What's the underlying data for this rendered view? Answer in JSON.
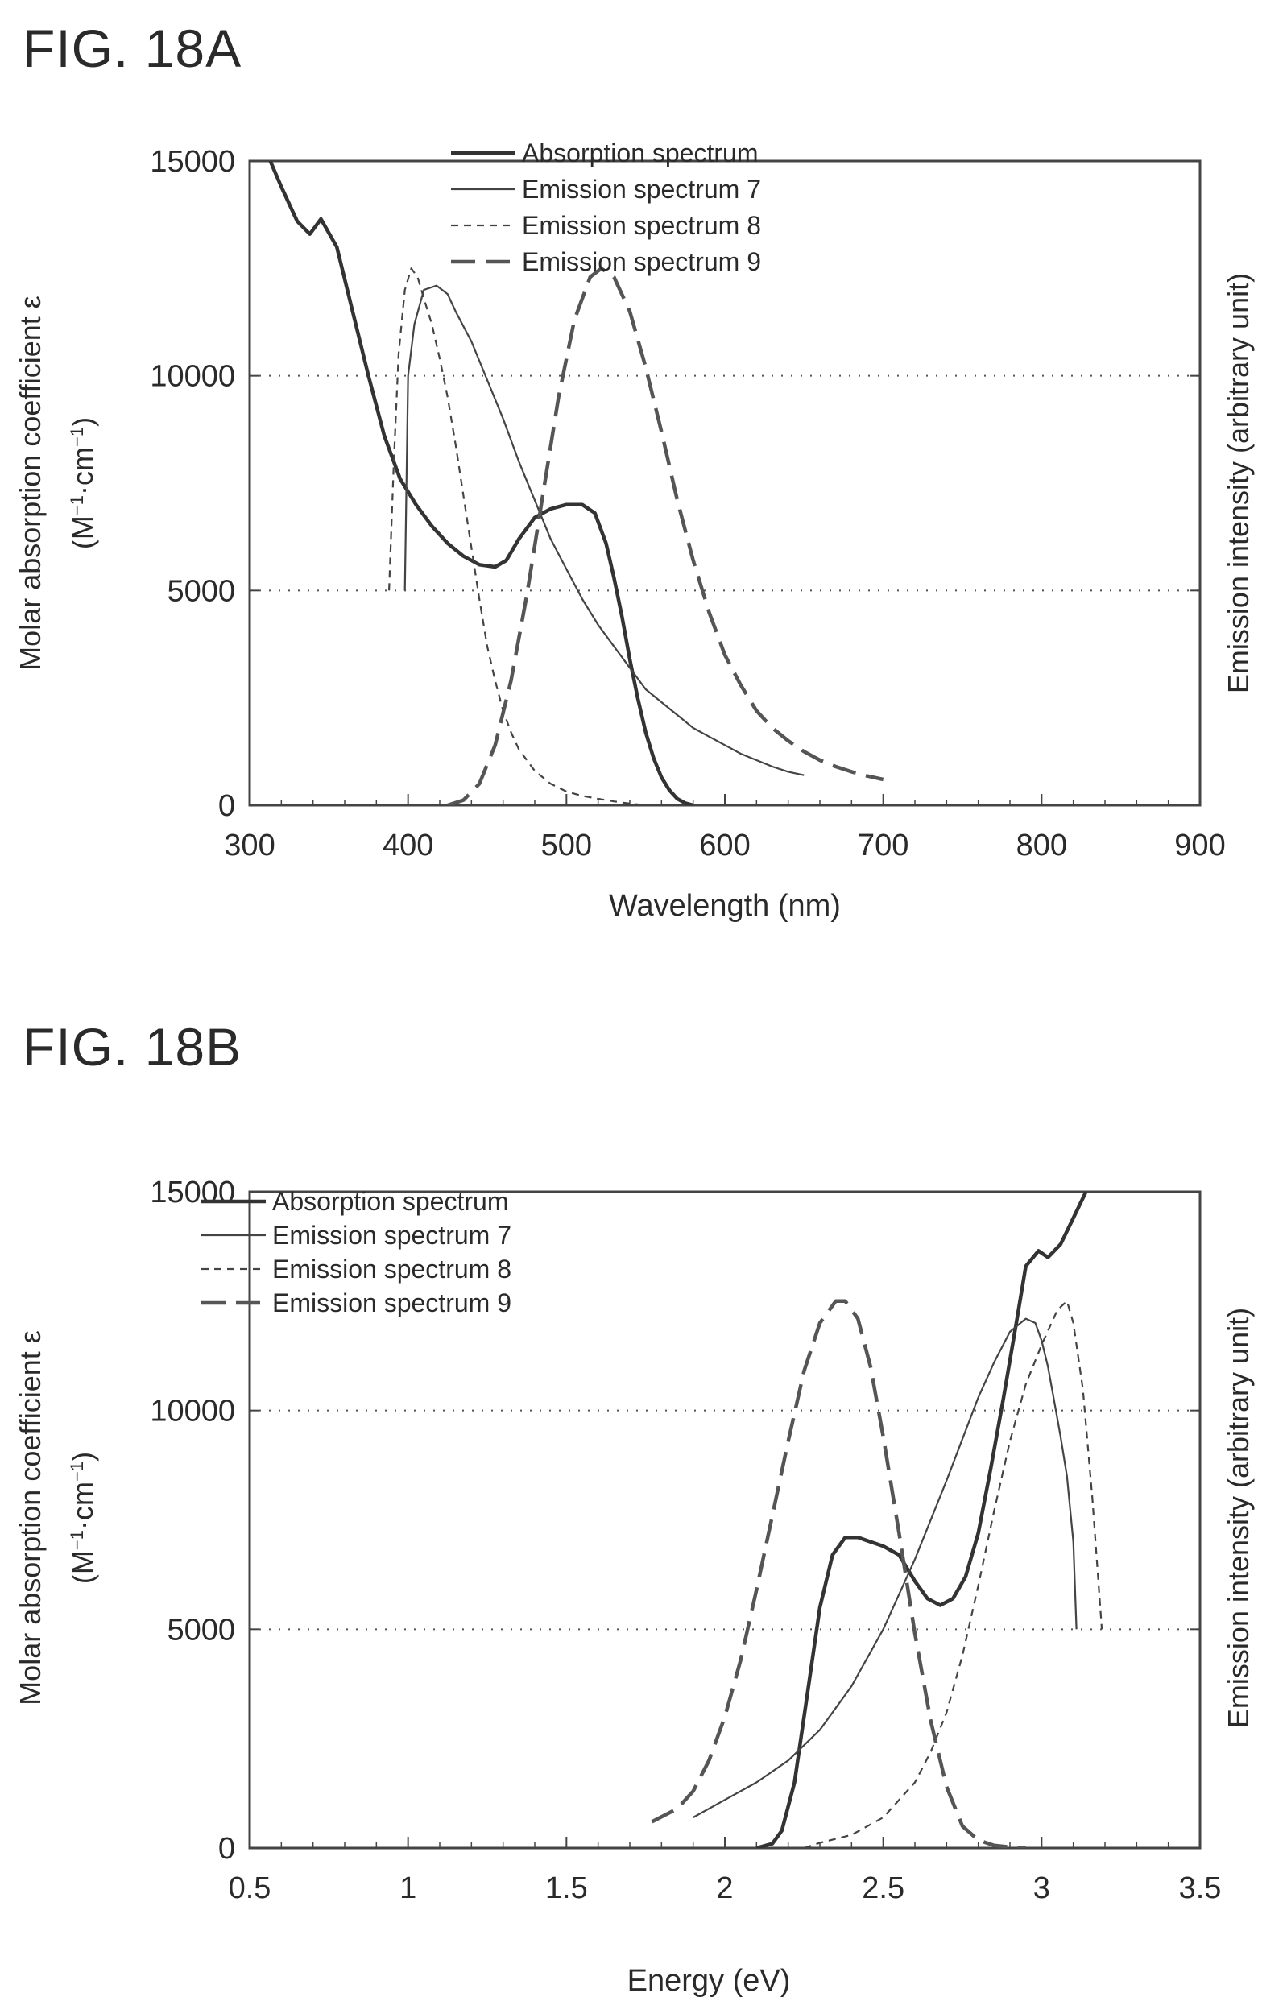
{
  "figures": {
    "a": {
      "title": "FIG. 18A"
    },
    "b": {
      "title": "FIG. 18B"
    }
  },
  "chart_data": [
    {
      "type": "line",
      "title": "FIG. 18A",
      "xlabel": "Wavelength (nm)",
      "ylabel": "Molar absorption coefficient ε",
      "ylabel_unit_base": "(M",
      "ylabel_unit_exp1": "−1",
      "ylabel_unit_mid": "·cm",
      "ylabel_unit_exp2": "−1",
      "ylabel_unit_end": ")",
      "y2label": "Emission intensity (arbitrary unit)",
      "xlim": [
        300,
        900
      ],
      "ylim": [
        0,
        15000
      ],
      "x_ticks": [
        300,
        400,
        500,
        600,
        700,
        800,
        900
      ],
      "y_ticks": [
        0,
        5000,
        10000,
        15000
      ],
      "x_tick_labels": [
        "300",
        "400",
        "500",
        "600",
        "700",
        "800",
        "900"
      ],
      "y_tick_labels": [
        "0",
        "5000",
        "10000",
        "15000"
      ],
      "grid": "dotted horizontal at 5000 and 10000",
      "legend_position": "top-right",
      "series": [
        {
          "name": "Absorption spectrum",
          "style": "thick-solid",
          "color": "#333333",
          "x": [
            313,
            320,
            330,
            338,
            345,
            355,
            365,
            375,
            385,
            395,
            405,
            415,
            425,
            435,
            445,
            455,
            462,
            470,
            480,
            490,
            500,
            510,
            518,
            525,
            530,
            535,
            540,
            545,
            550,
            555,
            560,
            565,
            570,
            575,
            580
          ],
          "y": [
            15000,
            14400,
            13600,
            13300,
            13650,
            13000,
            11500,
            10000,
            8600,
            7600,
            7000,
            6500,
            6100,
            5800,
            5600,
            5550,
            5700,
            6200,
            6700,
            6900,
            7000,
            7000,
            6800,
            6100,
            5300,
            4400,
            3400,
            2500,
            1700,
            1100,
            650,
            350,
            150,
            50,
            0
          ]
        },
        {
          "name": "Emission spectrum 7",
          "style": "thin-solid",
          "color": "#444444",
          "x": [
            398,
            400,
            404,
            410,
            418,
            425,
            430,
            440,
            450,
            460,
            470,
            480,
            490,
            500,
            510,
            520,
            530,
            540,
            550,
            560,
            570,
            580,
            590,
            600,
            610,
            620,
            630,
            640,
            650
          ],
          "y": [
            5000,
            10000,
            11200,
            12000,
            12100,
            11900,
            11500,
            10800,
            9900,
            9000,
            8000,
            7100,
            6200,
            5500,
            4800,
            4200,
            3700,
            3200,
            2700,
            2400,
            2100,
            1800,
            1600,
            1400,
            1200,
            1050,
            900,
            780,
            700
          ]
        },
        {
          "name": "Emission spectrum 8",
          "style": "short-dash",
          "color": "#444444",
          "x": [
            388,
            391,
            394,
            398,
            402,
            406,
            410,
            415,
            420,
            425,
            430,
            435,
            440,
            445,
            450,
            455,
            460,
            465,
            470,
            480,
            490,
            500,
            510,
            520,
            530,
            540,
            550
          ],
          "y": [
            5000,
            8000,
            10500,
            12000,
            12500,
            12300,
            11800,
            11200,
            10400,
            9500,
            8400,
            7200,
            6000,
            4800,
            3700,
            2900,
            2200,
            1700,
            1300,
            800,
            500,
            320,
            220,
            150,
            90,
            40,
            0
          ]
        },
        {
          "name": "Emission spectrum 9",
          "style": "long-dash",
          "color": "#555555",
          "x": [
            425,
            435,
            445,
            455,
            465,
            475,
            485,
            495,
            505,
            515,
            522,
            530,
            540,
            550,
            560,
            570,
            580,
            590,
            600,
            610,
            620,
            630,
            640,
            650,
            660,
            670,
            680,
            690,
            700
          ],
          "y": [
            0,
            120,
            500,
            1400,
            2900,
            4900,
            7200,
            9500,
            11300,
            12300,
            12500,
            12300,
            11500,
            10200,
            8700,
            7100,
            5700,
            4500,
            3500,
            2800,
            2200,
            1800,
            1500,
            1250,
            1050,
            900,
            780,
            680,
            600
          ]
        }
      ]
    },
    {
      "type": "line",
      "title": "FIG. 18B",
      "xlabel": "Energy (eV)",
      "ylabel": "Molar absorption coefficient ε",
      "ylabel_unit_base": "(M",
      "ylabel_unit_exp1": "−1",
      "ylabel_unit_mid": "·cm",
      "ylabel_unit_exp2": "−1",
      "ylabel_unit_end": ")",
      "y2label": "Emission intensity (arbitrary unit)",
      "xlim": [
        0.5,
        3.5
      ],
      "ylim": [
        0,
        15000
      ],
      "x_ticks": [
        0.5,
        1,
        1.5,
        2,
        2.5,
        3,
        3.5
      ],
      "y_ticks": [
        0,
        5000,
        10000,
        15000
      ],
      "x_tick_labels": [
        "0.5",
        "1",
        "1.5",
        "2",
        "2.5",
        "3",
        "3.5"
      ],
      "y_tick_labels": [
        "0",
        "5000",
        "10000",
        "15000"
      ],
      "grid": "dotted horizontal at 5000 and 10000",
      "legend_position": "top-left",
      "series": [
        {
          "name": "Absorption spectrum",
          "style": "thick-solid",
          "color": "#333333",
          "x": [
            2.1,
            2.15,
            2.18,
            2.22,
            2.26,
            2.3,
            2.34,
            2.38,
            2.42,
            2.46,
            2.5,
            2.55,
            2.6,
            2.64,
            2.68,
            2.72,
            2.76,
            2.8,
            2.84,
            2.88,
            2.92,
            2.95,
            2.99,
            3.02,
            3.06,
            3.1,
            3.14
          ],
          "y": [
            0,
            100,
            400,
            1500,
            3500,
            5500,
            6700,
            7100,
            7100,
            7000,
            6900,
            6700,
            6100,
            5700,
            5550,
            5700,
            6200,
            7200,
            8700,
            10300,
            12000,
            13300,
            13650,
            13500,
            13800,
            14400,
            15000
          ]
        },
        {
          "name": "Emission spectrum 7",
          "style": "thin-solid",
          "color": "#444444",
          "x": [
            1.9,
            2.0,
            2.1,
            2.2,
            2.3,
            2.4,
            2.5,
            2.6,
            2.7,
            2.8,
            2.85,
            2.9,
            2.95,
            2.98,
            3.0,
            3.02,
            3.04,
            3.06,
            3.08,
            3.1,
            3.11
          ],
          "y": [
            700,
            1100,
            1500,
            2000,
            2700,
            3700,
            5000,
            6600,
            8400,
            10300,
            11100,
            11800,
            12100,
            12000,
            11600,
            11000,
            10200,
            9400,
            8500,
            7000,
            5000
          ]
        },
        {
          "name": "Emission spectrum 8",
          "style": "short-dash",
          "color": "#444444",
          "x": [
            2.25,
            2.3,
            2.4,
            2.5,
            2.6,
            2.65,
            2.7,
            2.75,
            2.8,
            2.85,
            2.9,
            2.95,
            3.0,
            3.05,
            3.08,
            3.1,
            3.13,
            3.16,
            3.19
          ],
          "y": [
            0,
            120,
            300,
            700,
            1500,
            2200,
            3100,
            4400,
            6000,
            7700,
            9300,
            10600,
            11500,
            12300,
            12500,
            12000,
            10500,
            8000,
            5000
          ]
        },
        {
          "name": "Emission spectrum 9",
          "style": "long-dash",
          "color": "#555555",
          "x": [
            1.77,
            1.85,
            1.9,
            1.95,
            2.0,
            2.05,
            2.1,
            2.15,
            2.2,
            2.25,
            2.3,
            2.35,
            2.38,
            2.42,
            2.46,
            2.5,
            2.55,
            2.6,
            2.65,
            2.7,
            2.75,
            2.8,
            2.85,
            2.9,
            2.95
          ],
          "y": [
            600,
            900,
            1300,
            2000,
            3000,
            4300,
            5900,
            7600,
            9300,
            10900,
            12000,
            12500,
            12500,
            12100,
            11000,
            9400,
            7200,
            4900,
            2900,
            1400,
            500,
            180,
            60,
            20,
            0
          ]
        }
      ]
    }
  ]
}
